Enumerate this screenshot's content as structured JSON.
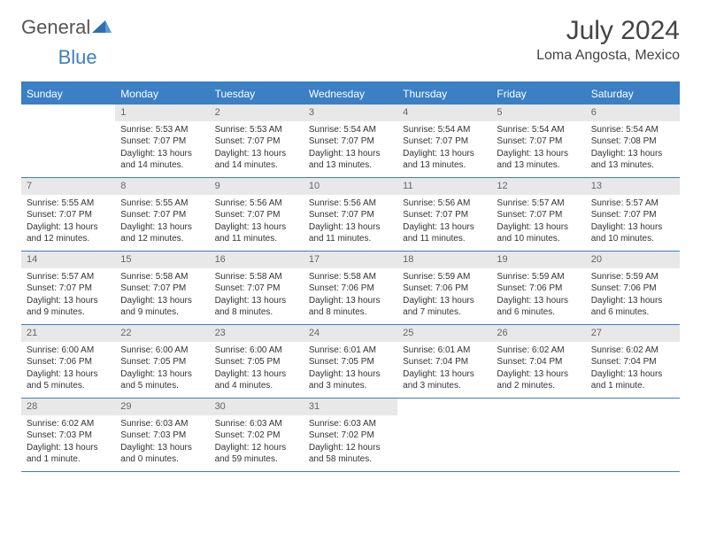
{
  "logo": {
    "text_general": "General",
    "text_blue": "Blue"
  },
  "header": {
    "month_title": "July 2024",
    "location": "Loma Angosta, Mexico"
  },
  "colors": {
    "header_bg": "#3b7fc4",
    "header_text": "#ffffff",
    "daynum_bg": "#e8e8e8",
    "daynum_text": "#666666",
    "body_text": "#333333",
    "week_border": "#3b7fc4"
  },
  "day_names": [
    "Sunday",
    "Monday",
    "Tuesday",
    "Wednesday",
    "Thursday",
    "Friday",
    "Saturday"
  ],
  "weeks": [
    [
      null,
      {
        "n": "1",
        "sr": "Sunrise: 5:53 AM",
        "ss": "Sunset: 7:07 PM",
        "dl": "Daylight: 13 hours and 14 minutes."
      },
      {
        "n": "2",
        "sr": "Sunrise: 5:53 AM",
        "ss": "Sunset: 7:07 PM",
        "dl": "Daylight: 13 hours and 14 minutes."
      },
      {
        "n": "3",
        "sr": "Sunrise: 5:54 AM",
        "ss": "Sunset: 7:07 PM",
        "dl": "Daylight: 13 hours and 13 minutes."
      },
      {
        "n": "4",
        "sr": "Sunrise: 5:54 AM",
        "ss": "Sunset: 7:07 PM",
        "dl": "Daylight: 13 hours and 13 minutes."
      },
      {
        "n": "5",
        "sr": "Sunrise: 5:54 AM",
        "ss": "Sunset: 7:07 PM",
        "dl": "Daylight: 13 hours and 13 minutes."
      },
      {
        "n": "6",
        "sr": "Sunrise: 5:54 AM",
        "ss": "Sunset: 7:08 PM",
        "dl": "Daylight: 13 hours and 13 minutes."
      }
    ],
    [
      {
        "n": "7",
        "sr": "Sunrise: 5:55 AM",
        "ss": "Sunset: 7:07 PM",
        "dl": "Daylight: 13 hours and 12 minutes."
      },
      {
        "n": "8",
        "sr": "Sunrise: 5:55 AM",
        "ss": "Sunset: 7:07 PM",
        "dl": "Daylight: 13 hours and 12 minutes."
      },
      {
        "n": "9",
        "sr": "Sunrise: 5:56 AM",
        "ss": "Sunset: 7:07 PM",
        "dl": "Daylight: 13 hours and 11 minutes."
      },
      {
        "n": "10",
        "sr": "Sunrise: 5:56 AM",
        "ss": "Sunset: 7:07 PM",
        "dl": "Daylight: 13 hours and 11 minutes."
      },
      {
        "n": "11",
        "sr": "Sunrise: 5:56 AM",
        "ss": "Sunset: 7:07 PM",
        "dl": "Daylight: 13 hours and 11 minutes."
      },
      {
        "n": "12",
        "sr": "Sunrise: 5:57 AM",
        "ss": "Sunset: 7:07 PM",
        "dl": "Daylight: 13 hours and 10 minutes."
      },
      {
        "n": "13",
        "sr": "Sunrise: 5:57 AM",
        "ss": "Sunset: 7:07 PM",
        "dl": "Daylight: 13 hours and 10 minutes."
      }
    ],
    [
      {
        "n": "14",
        "sr": "Sunrise: 5:57 AM",
        "ss": "Sunset: 7:07 PM",
        "dl": "Daylight: 13 hours and 9 minutes."
      },
      {
        "n": "15",
        "sr": "Sunrise: 5:58 AM",
        "ss": "Sunset: 7:07 PM",
        "dl": "Daylight: 13 hours and 9 minutes."
      },
      {
        "n": "16",
        "sr": "Sunrise: 5:58 AM",
        "ss": "Sunset: 7:07 PM",
        "dl": "Daylight: 13 hours and 8 minutes."
      },
      {
        "n": "17",
        "sr": "Sunrise: 5:58 AM",
        "ss": "Sunset: 7:06 PM",
        "dl": "Daylight: 13 hours and 8 minutes."
      },
      {
        "n": "18",
        "sr": "Sunrise: 5:59 AM",
        "ss": "Sunset: 7:06 PM",
        "dl": "Daylight: 13 hours and 7 minutes."
      },
      {
        "n": "19",
        "sr": "Sunrise: 5:59 AM",
        "ss": "Sunset: 7:06 PM",
        "dl": "Daylight: 13 hours and 6 minutes."
      },
      {
        "n": "20",
        "sr": "Sunrise: 5:59 AM",
        "ss": "Sunset: 7:06 PM",
        "dl": "Daylight: 13 hours and 6 minutes."
      }
    ],
    [
      {
        "n": "21",
        "sr": "Sunrise: 6:00 AM",
        "ss": "Sunset: 7:06 PM",
        "dl": "Daylight: 13 hours and 5 minutes."
      },
      {
        "n": "22",
        "sr": "Sunrise: 6:00 AM",
        "ss": "Sunset: 7:05 PM",
        "dl": "Daylight: 13 hours and 5 minutes."
      },
      {
        "n": "23",
        "sr": "Sunrise: 6:00 AM",
        "ss": "Sunset: 7:05 PM",
        "dl": "Daylight: 13 hours and 4 minutes."
      },
      {
        "n": "24",
        "sr": "Sunrise: 6:01 AM",
        "ss": "Sunset: 7:05 PM",
        "dl": "Daylight: 13 hours and 3 minutes."
      },
      {
        "n": "25",
        "sr": "Sunrise: 6:01 AM",
        "ss": "Sunset: 7:04 PM",
        "dl": "Daylight: 13 hours and 3 minutes."
      },
      {
        "n": "26",
        "sr": "Sunrise: 6:02 AM",
        "ss": "Sunset: 7:04 PM",
        "dl": "Daylight: 13 hours and 2 minutes."
      },
      {
        "n": "27",
        "sr": "Sunrise: 6:02 AM",
        "ss": "Sunset: 7:04 PM",
        "dl": "Daylight: 13 hours and 1 minute."
      }
    ],
    [
      {
        "n": "28",
        "sr": "Sunrise: 6:02 AM",
        "ss": "Sunset: 7:03 PM",
        "dl": "Daylight: 13 hours and 1 minute."
      },
      {
        "n": "29",
        "sr": "Sunrise: 6:03 AM",
        "ss": "Sunset: 7:03 PM",
        "dl": "Daylight: 13 hours and 0 minutes."
      },
      {
        "n": "30",
        "sr": "Sunrise: 6:03 AM",
        "ss": "Sunset: 7:02 PM",
        "dl": "Daylight: 12 hours and 59 minutes."
      },
      {
        "n": "31",
        "sr": "Sunrise: 6:03 AM",
        "ss": "Sunset: 7:02 PM",
        "dl": "Daylight: 12 hours and 58 minutes."
      },
      null,
      null,
      null
    ]
  ]
}
